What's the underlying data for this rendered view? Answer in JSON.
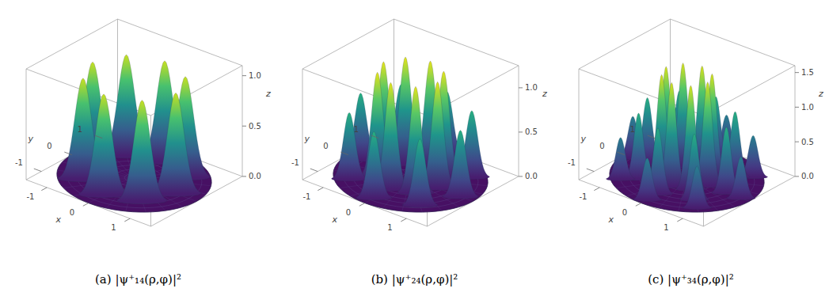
{
  "chart_data": [
    {
      "type": "surface3d",
      "title": "(a) |ψ⁺₁₄(ρ,φ)|²",
      "xlabel": "x",
      "ylabel": "y",
      "zlabel": "z",
      "xlim": [
        -1.5,
        1.5
      ],
      "ylim": [
        -1.5,
        1.5
      ],
      "zlim": [
        0,
        1.1
      ],
      "xticks": [
        -1,
        0,
        1
      ],
      "yticks": [
        -1,
        0,
        1
      ],
      "zticks": [
        {
          "value": 0,
          "label": "0.0"
        },
        {
          "value": 0.5,
          "label": "0.5"
        },
        {
          "value": 1,
          "label": "1.0"
        }
      ],
      "rho_max": 1.5,
      "peaks": {
        "x": [
          1,
          0.71,
          0,
          -0.71,
          -1,
          -0.71,
          0,
          0.71
        ],
        "y": [
          0,
          0.71,
          1,
          0.71,
          0,
          -0.71,
          -1,
          -0.71
        ],
        "z": [
          1,
          1,
          1,
          1,
          1,
          1,
          1,
          1
        ]
      }
    },
    {
      "type": "surface3d",
      "title": "(b) |ψ⁺₂₄(ρ,φ)|²",
      "xlabel": "x",
      "ylabel": "y",
      "zlabel": "z",
      "xlim": [
        -1.5,
        1.5
      ],
      "ylim": [
        -1.5,
        1.5
      ],
      "zlim": [
        0,
        1.25
      ],
      "xticks": [
        -1,
        0,
        1
      ],
      "yticks": [
        -1,
        0,
        1
      ],
      "zticks": [
        {
          "value": 0,
          "label": "0.0"
        },
        {
          "value": 0.5,
          "label": "0.5"
        },
        {
          "value": 1,
          "label": "1.0"
        }
      ],
      "rho_max": 1.5,
      "peaks": {
        "x": [
          0.65,
          0.46,
          0,
          -0.46,
          -0.65,
          -0.46,
          0,
          0.46,
          1.2,
          0.85,
          0,
          -0.85,
          -1.2,
          -0.85,
          0,
          0.85
        ],
        "y": [
          0,
          0.46,
          0.65,
          0.46,
          0,
          -0.46,
          -0.65,
          -0.46,
          0,
          0.85,
          1.2,
          0.85,
          0,
          -0.85,
          -1.2,
          -0.85
        ],
        "z": [
          1.2,
          1.2,
          1.2,
          1.2,
          1.2,
          1.2,
          1.2,
          1.2,
          0.75,
          0.75,
          0.75,
          0.75,
          0.75,
          0.75,
          0.75,
          0.75
        ]
      }
    },
    {
      "type": "surface3d",
      "title": "(c) |ψ⁺₃₄(ρ,φ)|²",
      "xlabel": "x",
      "ylabel": "y",
      "zlabel": "z",
      "xlim": [
        -1.5,
        1.5
      ],
      "ylim": [
        -1.5,
        1.5
      ],
      "zlim": [
        0,
        1.6
      ],
      "xticks": [
        -1,
        0,
        1
      ],
      "yticks": [
        -1,
        0,
        1
      ],
      "zticks": [
        {
          "value": 0,
          "label": "0.0"
        },
        {
          "value": 0.5,
          "label": "0.5"
        },
        {
          "value": 1,
          "label": "1.0"
        },
        {
          "value": 1.5,
          "label": "1.5"
        }
      ],
      "rho_max": 1.5,
      "peaks": {
        "x": [
          0.5,
          0.35,
          0,
          -0.35,
          -0.5,
          -0.35,
          0,
          0.35,
          0.95,
          0.67,
          0,
          -0.67,
          -0.95,
          -0.67,
          0,
          0.67,
          1.3,
          0.92,
          0,
          -0.92,
          -1.3,
          -0.92,
          0,
          0.92
        ],
        "y": [
          0,
          0.35,
          0.5,
          0.35,
          0,
          -0.35,
          -0.5,
          -0.35,
          0,
          0.67,
          0.95,
          0.67,
          0,
          -0.67,
          -0.95,
          -0.67,
          0,
          0.92,
          1.3,
          0.92,
          0,
          -0.92,
          -1.3,
          -0.92
        ],
        "z": [
          1.5,
          1.5,
          1.5,
          1.5,
          1.5,
          1.5,
          1.5,
          1.5,
          0.95,
          0.95,
          0.95,
          0.95,
          0.95,
          0.95,
          0.95,
          0.95,
          0.6,
          0.6,
          0.6,
          0.6,
          0.6,
          0.6,
          0.6,
          0.6
        ]
      }
    }
  ]
}
